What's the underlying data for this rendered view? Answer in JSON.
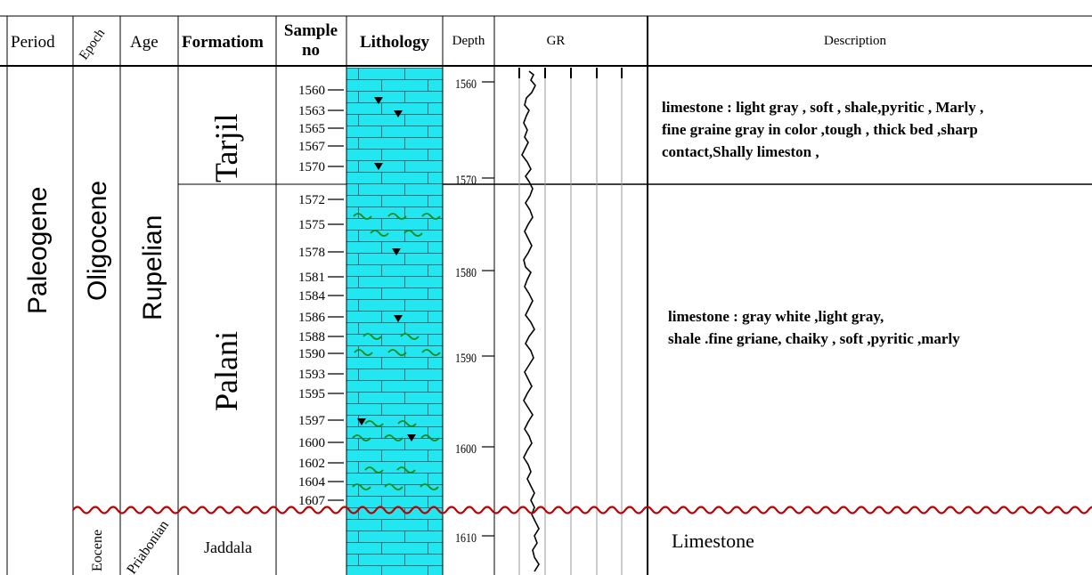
{
  "headers": {
    "period": "Period",
    "epoch": "Epoch",
    "age": "Age",
    "formation": "Formatiom",
    "sample_line1": "Sample",
    "sample_line2": "no",
    "lithology": "Lithology",
    "depth": "Depth",
    "gr": "GR",
    "description": "Description"
  },
  "stratigraphy": {
    "period": "Paleogene",
    "epoch_upper": "Oligocene",
    "epoch_lower": "Eocene",
    "age_upper": "Rupelian",
    "age_lower": "Priabonian",
    "formation_1": "Tarjil",
    "formation_2": "Palani",
    "formation_3": "Jaddala"
  },
  "samples": [
    "1560",
    "1563",
    "1565",
    "1567",
    "1570",
    "1572",
    "1575",
    "1578",
    "1581",
    "1584",
    "1586",
    "1588",
    "1590",
    "1593",
    "1595",
    "1597",
    "1600",
    "1602",
    "1604",
    "1607"
  ],
  "depth_labels": [
    "1560",
    "1570",
    "1580",
    "1590",
    "1600",
    "1610"
  ],
  "descriptions": {
    "tarjil": [
      "limestone : light gray , soft , shale,pyritic , Marly ,",
      "fine graine gray in color ,tough , thick bed ,sharp",
      "contact,Shally  limeston ,"
    ],
    "palani": [
      "limestone :  gray white ,light gray,",
      "shale .fine griane, chaiky , soft ,pyritic ,marly"
    ],
    "jaddala": "Limestone"
  },
  "colors": {
    "lithology_fill": "#22e6f0",
    "unconformity": "#c00000",
    "shale_symbol": "#1a8a1a",
    "pyrite_symbol": "#000000"
  },
  "icons": [
    "limestone-brick-pattern",
    "pyrite-triangle-icon",
    "shale-wave-icon",
    "unconformity-wavy-line"
  ]
}
